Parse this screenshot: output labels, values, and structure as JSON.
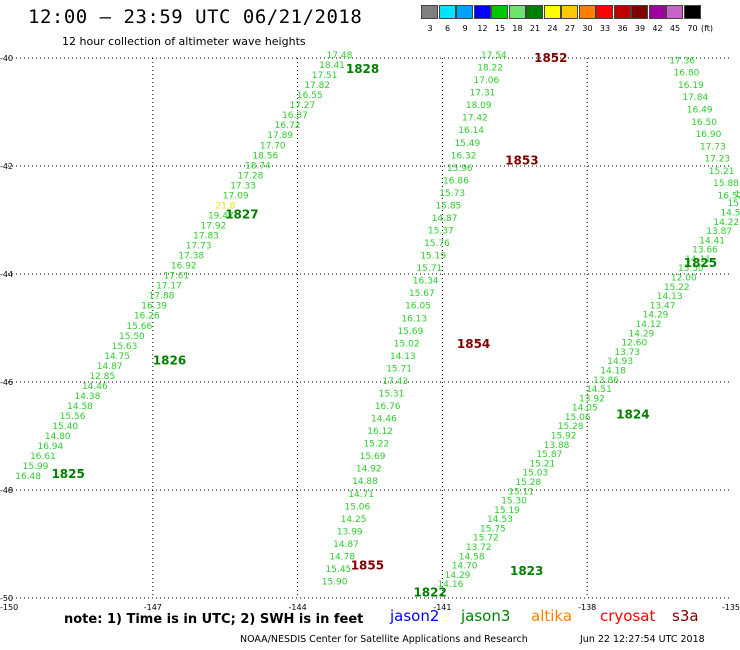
{
  "header": {
    "title": "12:00 – 23:59 UTC 06/21/2018",
    "subtitle": "12 hour collection of altimeter wave heights"
  },
  "colorbar": {
    "unit_label": "(ft)",
    "bins": [
      {
        "label": "3",
        "color": "#808080"
      },
      {
        "label": "6",
        "color": "#00e5ff"
      },
      {
        "label": "9",
        "color": "#00a0ff"
      },
      {
        "label": "12",
        "color": "#0000ff"
      },
      {
        "label": "15",
        "color": "#00c800"
      },
      {
        "label": "18",
        "color": "#6ee26e"
      },
      {
        "label": "21",
        "color": "#008000"
      },
      {
        "label": "24",
        "color": "#ffff00"
      },
      {
        "label": "27",
        "color": "#ffc800"
      },
      {
        "label": "30",
        "color": "#ff7f00"
      },
      {
        "label": "33",
        "color": "#ff0000"
      },
      {
        "label": "36",
        "color": "#c00000"
      },
      {
        "label": "39",
        "color": "#800000"
      },
      {
        "label": "42",
        "color": "#a000a0"
      },
      {
        "label": "45",
        "color": "#c864c8"
      },
      {
        "label": "70",
        "color": "#000000"
      }
    ]
  },
  "map": {
    "lon_range": [
      -150,
      -135
    ],
    "lat_range": [
      -50,
      -40
    ],
    "lon_ticks": [
      "-150",
      "-147",
      "-144",
      "-141",
      "-138",
      "-135"
    ],
    "lat_ticks": [
      "-40",
      "-42",
      "-44",
      "-46",
      "-48",
      "-50"
    ],
    "colors": {
      "light_green": "#2ecc2e",
      "green": "#008000",
      "yellow": "#e6e600",
      "dark_red": "#800000"
    },
    "track_labels": [
      {
        "text": "1828",
        "lon": -143.0,
        "lat": -40.2,
        "color": "green"
      },
      {
        "text": "1827",
        "lon": -145.5,
        "lat": -42.9,
        "color": "green"
      },
      {
        "text": "1826",
        "lon": -147.0,
        "lat": -45.6,
        "color": "green"
      },
      {
        "text": "1825",
        "lon": -149.1,
        "lat": -47.7,
        "color": "green"
      },
      {
        "text": "1852",
        "lon": -139.1,
        "lat": -40.0,
        "color": "dark_red"
      },
      {
        "text": "1853",
        "lon": -139.7,
        "lat": -41.9,
        "color": "dark_red"
      },
      {
        "text": "1854",
        "lon": -140.7,
        "lat": -45.3,
        "color": "dark_red"
      },
      {
        "text": "1855",
        "lon": -142.9,
        "lat": -49.4,
        "color": "dark_red"
      },
      {
        "text": "1825",
        "lon": -136.0,
        "lat": -43.8,
        "color": "green"
      },
      {
        "text": "1824",
        "lon": -137.4,
        "lat": -46.6,
        "color": "green"
      },
      {
        "text": "1823",
        "lon": -139.6,
        "lat": -49.5,
        "color": "green"
      },
      {
        "text": "1822",
        "lon": -141.6,
        "lat": -49.9,
        "color": "green"
      }
    ],
    "tracks": [
      {
        "name": "track-1828-1825",
        "start": {
          "lon": -149.85,
          "lat": -47.8
        },
        "end": {
          "lon": -143.4,
          "lat": -40.0
        },
        "values": [
          "16.48",
          "15.99",
          "16.61",
          "16.94",
          "14.80",
          "15.40",
          "15.56",
          "14.58",
          "14.38",
          "14.46",
          "12.85",
          "14.87",
          "14.75",
          "15.63",
          "15.50",
          "15.66",
          "16.26",
          "16.39",
          "17.88",
          "17.17",
          "17.61",
          "16.92",
          "17.38",
          "17.73",
          "17.83",
          "17.92",
          "19.47",
          "21.8",
          "17.09",
          "17.33",
          "17.28",
          "18.74",
          "18.56",
          "17.70",
          "17.89",
          "16.72",
          "16.87",
          "17.27",
          "16.55",
          "17.82",
          "17.51",
          "18.41",
          "17.48"
        ],
        "highlights": {
          "21.8": "yellow"
        }
      },
      {
        "name": "track-1852-1855",
        "start": {
          "lon": -143.5,
          "lat": -49.75
        },
        "end": {
          "lon": -140.2,
          "lat": -40.0
        },
        "values": [
          "15.90",
          "15.45",
          "14.78",
          "14.87",
          "13.99",
          "14.25",
          "15.06",
          "14.71",
          "14.88",
          "14.92",
          "15.69",
          "15.22",
          "16.12",
          "14.46",
          "16.76",
          "15.31",
          "17.43",
          "15.71",
          "14.13",
          "15.02",
          "15.69",
          "16.13",
          "16.05",
          "15.67",
          "16.34",
          "15.71",
          "15.19",
          "15.76",
          "15.37",
          "14.87",
          "15.85",
          "15.73",
          "16.86",
          "15.96",
          "16.32",
          "15.49",
          "16.14",
          "17.42",
          "18.09",
          "17.31",
          "17.06",
          "18.22",
          "17.54"
        ],
        "highlights": {}
      },
      {
        "name": "track-1822-1825",
        "start": {
          "lon": -141.1,
          "lat": -49.8
        },
        "end": {
          "lon": -134.8,
          "lat": -42.4
        },
        "values": [
          "14.16",
          "14.29",
          "14.70",
          "14.58",
          "13.72",
          "15.72",
          "15.75",
          "14.53",
          "15.19",
          "15.30",
          "15.11",
          "15.28",
          "15.03",
          "15.21",
          "15.87",
          "13.88",
          "15.92",
          "15.28",
          "15.06",
          "14.05",
          "13.92",
          "14.51",
          "13.86",
          "14.18",
          "14.93",
          "13.73",
          "12.60",
          "14.29",
          "14.12",
          "14.29",
          "13.47",
          "14.13",
          "15.22",
          "12.00",
          "15.50",
          "14.11",
          "13.66",
          "14.41",
          "13.87",
          "14.22",
          "14.50",
          "15.36",
          "15.25",
          "16.35"
        ],
        "highlights": {}
      },
      {
        "name": "track-east-edge",
        "start": {
          "lon": -135.3,
          "lat": -42.6
        },
        "end": {
          "lon": -136.3,
          "lat": -40.1
        },
        "values": [
          "16.52",
          "15.88",
          "15.21",
          "17.23",
          "17.73",
          "16.90",
          "16.50",
          "16.49",
          "17.84",
          "16.19",
          "16.80",
          "17.36"
        ],
        "highlights": {}
      }
    ]
  },
  "legend": {
    "note": "note:  1) Time is in UTC;  2) SWH is in feet",
    "satellites": [
      {
        "name": "jason2",
        "color": "#0000ff"
      },
      {
        "name": "jason3",
        "color": "#008000"
      },
      {
        "name": "altika",
        "color": "#ff8000"
      },
      {
        "name": "cryosat",
        "color": "#ff0000"
      },
      {
        "name": "s3a",
        "color": "#800000"
      }
    ]
  },
  "footer": {
    "credit": "NOAA/NESDIS Center for Satellite Applications and Research",
    "timestamp": "Jun 22 12:27:54 UTC 2018"
  }
}
